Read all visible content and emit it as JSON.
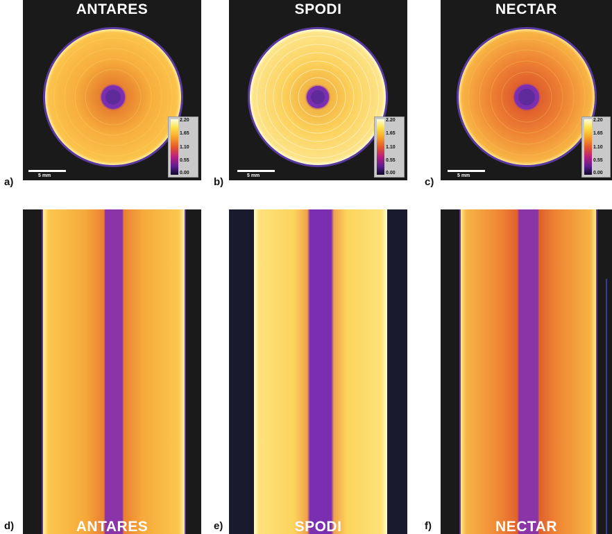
{
  "panels": {
    "a": {
      "letter": "a)",
      "title": "ANTARES",
      "scale": "5 mm",
      "colorbar": [
        "2.20",
        "1.65",
        "1.10",
        "0.55",
        "0.00"
      ]
    },
    "b": {
      "letter": "b)",
      "title": "SPODI",
      "scale": "5 mm",
      "colorbar": [
        "2.20",
        "1.65",
        "1.10",
        "0.55",
        "0.00"
      ]
    },
    "c": {
      "letter": "c)",
      "title": "NECTAR",
      "scale": "5 mm",
      "colorbar": [
        "2.20",
        "1.65",
        "1.10",
        "0.55",
        "0.00"
      ]
    },
    "d": {
      "letter": "d)",
      "title": "ANTARES"
    },
    "e": {
      "letter": "e)",
      "title": "SPODI"
    },
    "f": {
      "letter": "f)",
      "title": "NECTAR"
    }
  },
  "colors": {
    "background": "#1a1a1a",
    "antares": "#f5a93a",
    "spodi": "#fbd860",
    "nectar": "#ef8a35",
    "core": "#7a2fb0"
  }
}
